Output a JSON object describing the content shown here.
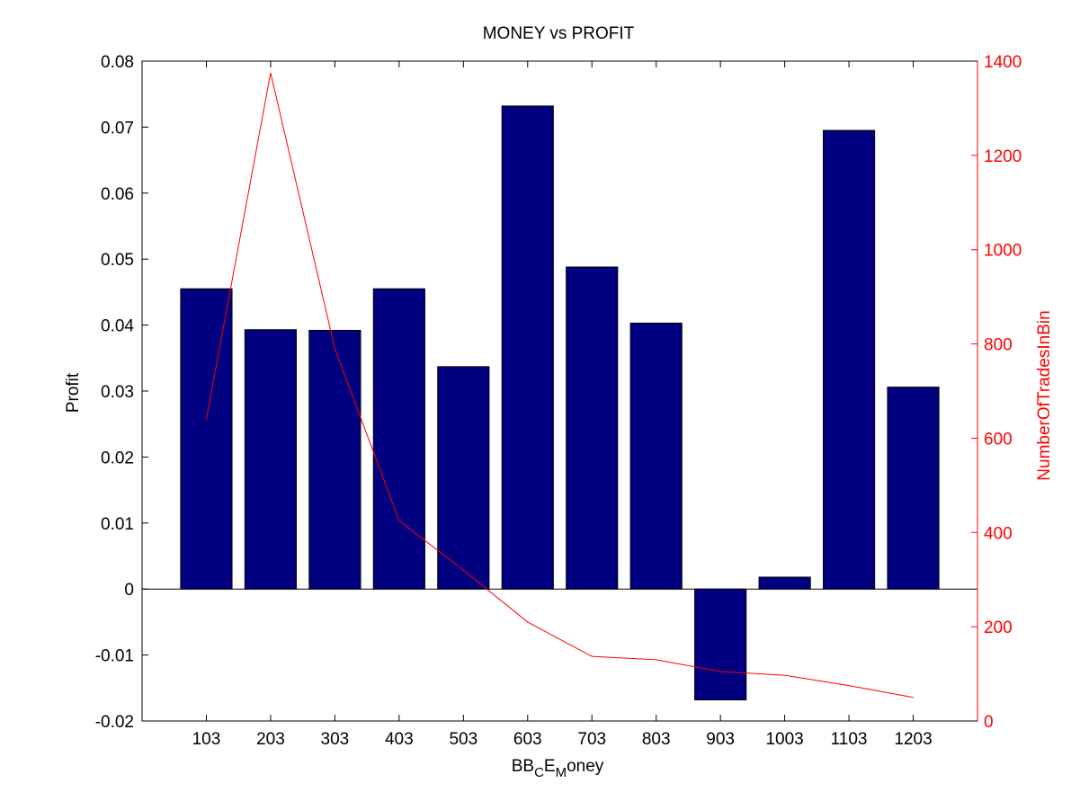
{
  "chart_data": {
    "type": "bar",
    "title": "MONEY vs PROFIT",
    "xlabel": {
      "main": "BB",
      "sub1": "C",
      "mid": "E",
      "sub2": "M",
      "tail": "oney"
    },
    "ylabel": "Profit",
    "ylabel_right": "NumberOfTradesInBin",
    "categories": [
      "103",
      "203",
      "303",
      "403",
      "503",
      "603",
      "703",
      "803",
      "903",
      "1003",
      "1103",
      "1203"
    ],
    "x_values": [
      103,
      203,
      303,
      403,
      503,
      603,
      703,
      803,
      903,
      1003,
      1103,
      1203
    ],
    "xlim": [
      3,
      1303
    ],
    "ylim": [
      -0.02,
      0.08
    ],
    "yticks": [
      "-0.02",
      "-0.01",
      "0",
      "0.01",
      "0.02",
      "0.03",
      "0.04",
      "0.05",
      "0.06",
      "0.07",
      "0.08"
    ],
    "ylim_right": [
      0,
      1400
    ],
    "yticks_right": [
      "0",
      "200",
      "400",
      "600",
      "800",
      "1000",
      "1200",
      "1400"
    ],
    "series": [
      {
        "name": "Profit",
        "type": "bar",
        "axis": "left",
        "color": "#000080",
        "values": [
          0.0455,
          0.0393,
          0.0392,
          0.0455,
          0.0337,
          0.0732,
          0.0488,
          0.0403,
          -0.0168,
          0.0018,
          0.0695,
          0.0306
        ]
      },
      {
        "name": "NumberOfTradesInBin",
        "type": "line",
        "axis": "right",
        "color": "#ff0000",
        "values": [
          640,
          1375,
          790,
          425,
          320,
          210,
          137,
          130,
          105,
          97,
          75,
          50
        ]
      }
    ],
    "grid": false,
    "legend": "none"
  }
}
